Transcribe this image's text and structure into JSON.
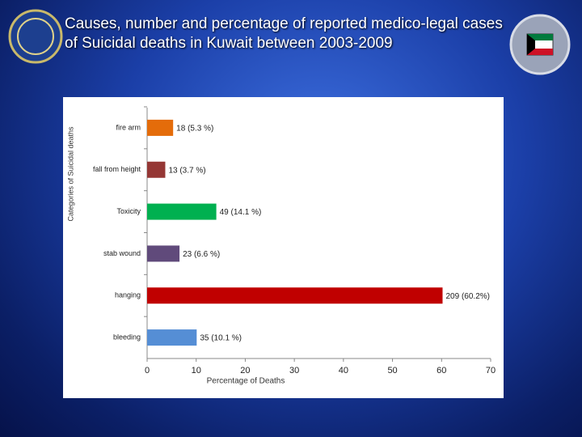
{
  "chart_data": {
    "type": "bar",
    "orientation": "horizontal",
    "title": "Causes, number and percentage of reported medico-legal cases of Suicidal deaths in Kuwait between 2003-2009",
    "categories": [
      "fire arm",
      "fall from height",
      "Toxicity",
      "stab wound",
      "hanging",
      "bleeding"
    ],
    "values": [
      5.3,
      3.7,
      14.1,
      6.6,
      60.2,
      10.1
    ],
    "value_labels": [
      "18 (5.3 %)",
      "13 (3.7 %)",
      "49 (14.1 %)",
      "23 (6.6 %)",
      "209 (60.2%)",
      "35 (10.1 %)"
    ],
    "colors": [
      "#e46c0a",
      "#953735",
      "#00b050",
      "#604a7b",
      "#c00000",
      "#558ed5"
    ],
    "xlim": [
      0,
      70
    ],
    "xticks": [
      0,
      10,
      20,
      30,
      40,
      50,
      60,
      70
    ],
    "xlabel": "Percentage of Deaths",
    "ylabel": "Categories of Suicidal deaths"
  }
}
